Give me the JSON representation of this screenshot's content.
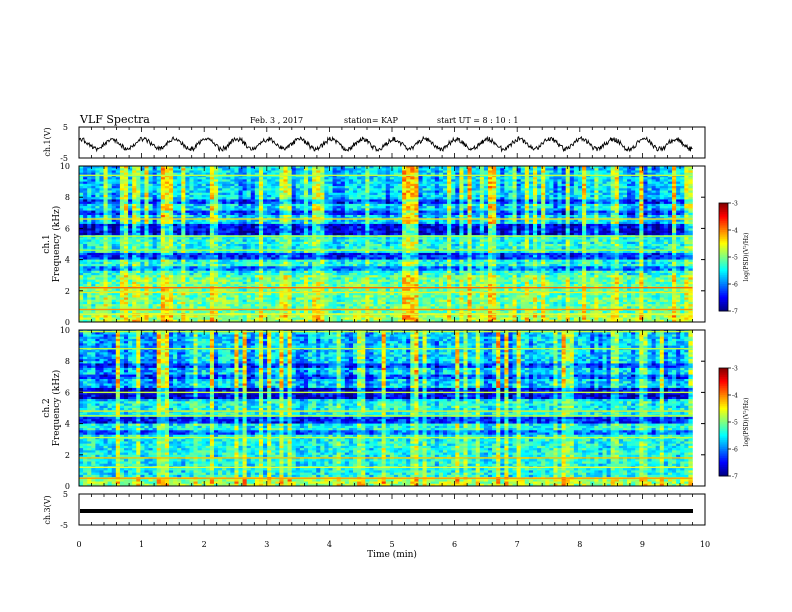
{
  "header": {
    "title": "VLF Spectra",
    "date": "Feb. 3 , 2017",
    "station": "station= KAP",
    "start": "start UT = 8 : 10 : 1"
  },
  "chart_data": [
    {
      "type": "line",
      "ylabel": "ch.1(V)",
      "ylim": [
        -5,
        5
      ],
      "yticks": [
        "5",
        "-5"
      ],
      "xlim": [
        0,
        10
      ],
      "description_of_signal": "oscillating waveform between about -3 and 2 V with period ~0.5 min"
    },
    {
      "type": "heatmap",
      "ylabel": "ch.1",
      "ylabel2": "Frequency (kHz)",
      "ylim": [
        0,
        10
      ],
      "yticks": [
        "0",
        "2",
        "4",
        "6",
        "8",
        "10"
      ],
      "xlim": [
        0,
        10
      ],
      "colorbar": {
        "label": "log(PSD)(V²/Hz)",
        "ticks": [
          "-3",
          "-4",
          "-5",
          "-6",
          "-7"
        ],
        "range": [
          -7,
          -3
        ]
      }
    },
    {
      "type": "heatmap",
      "ylabel": "ch.2",
      "ylabel2": "Frequency (kHz)",
      "ylim": [
        0,
        10
      ],
      "yticks": [
        "0",
        "2",
        "4",
        "6",
        "8",
        "10"
      ],
      "xlim": [
        0,
        10
      ],
      "colorbar": {
        "label": "log(PSD)(V²/Hz)",
        "ticks": [
          "-3",
          "-4",
          "-5",
          "-6",
          "-7"
        ],
        "range": [
          -7,
          -3
        ]
      }
    },
    {
      "type": "line",
      "ylabel": "ch.3(V)",
      "ylim": [
        -5,
        5
      ],
      "yticks": [
        "5",
        "-5"
      ],
      "xlim": [
        0,
        10
      ],
      "constant_value": 0
    }
  ],
  "xaxis": {
    "label": "Time (min)",
    "ticks": [
      "0",
      "1",
      "2",
      "3",
      "4",
      "5",
      "6",
      "7",
      "8",
      "9",
      "10"
    ]
  }
}
